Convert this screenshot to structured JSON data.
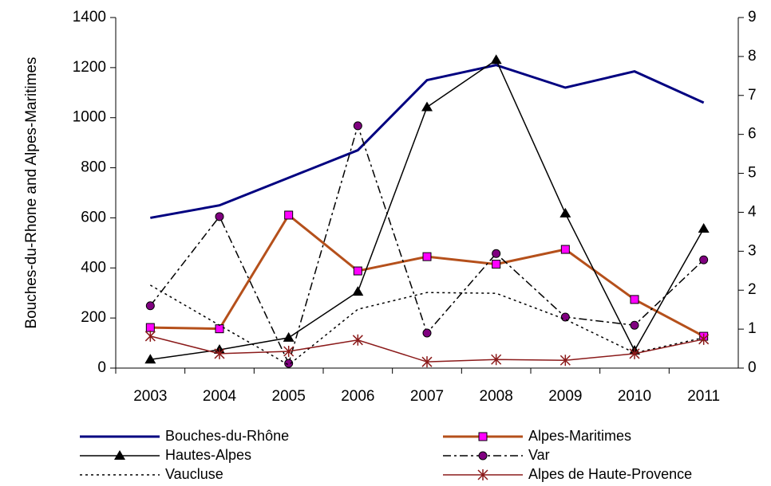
{
  "chart_data": {
    "type": "line",
    "y_label": "Bouches-du-Rhone and Alpes-Maritimes",
    "categories": [
      "2003",
      "2004",
      "2005",
      "2006",
      "2007",
      "2008",
      "2009",
      "2010",
      "2011"
    ],
    "ylim": [
      0,
      1400
    ],
    "yticks": [
      0,
      200,
      400,
      600,
      800,
      1000,
      1200,
      1400
    ],
    "y2lim": [
      0,
      9
    ],
    "y2ticks": [
      0,
      1,
      2,
      3,
      4,
      5,
      6,
      7,
      8,
      9
    ],
    "series": [
      {
        "name": "Bouches-du-Rhône",
        "color": "#000080",
        "width": 3,
        "dash": "none",
        "marker": "none",
        "values": [
          600,
          650,
          760,
          870,
          1150,
          1210,
          1120,
          1185,
          1060
        ]
      },
      {
        "name": "Alpes-Maritimes",
        "color": "#b5501b",
        "width": 3,
        "dash": "none",
        "marker": "square",
        "values": [
          162,
          157,
          611,
          388,
          445,
          415,
          474,
          274,
          127
        ]
      },
      {
        "name": "Hautes-Alpes",
        "color": "#000000",
        "width": 1.5,
        "dash": "none",
        "marker": "triangle",
        "axis": "y2",
        "values": [
          0.22,
          0.47,
          0.78,
          1.96,
          6.7,
          7.91,
          3.97,
          0.45,
          3.58
        ]
      },
      {
        "name": "Var",
        "color": "#000000",
        "width": 1.5,
        "dash": "10 4 3 4",
        "marker": "circle",
        "axis": "y2",
        "values": [
          1.6,
          3.89,
          0.12,
          6.22,
          0.9,
          2.94,
          1.31,
          1.1,
          2.78
        ]
      },
      {
        "name": "Vaucluse",
        "color": "#000000",
        "width": 1.5,
        "dash": "3 4",
        "marker": "none",
        "axis": "y2",
        "values": [
          2.13,
          1.1,
          0.08,
          1.51,
          1.94,
          1.92,
          1.25,
          0.39,
          0.78
        ]
      },
      {
        "name": "Alpes de Haute-Provence",
        "color": "#8b1a1a",
        "width": 1.5,
        "dash": "none",
        "marker": "star",
        "axis": "y2",
        "values": [
          0.82,
          0.37,
          0.43,
          0.72,
          0.16,
          0.22,
          0.2,
          0.37,
          0.74
        ]
      }
    ]
  }
}
